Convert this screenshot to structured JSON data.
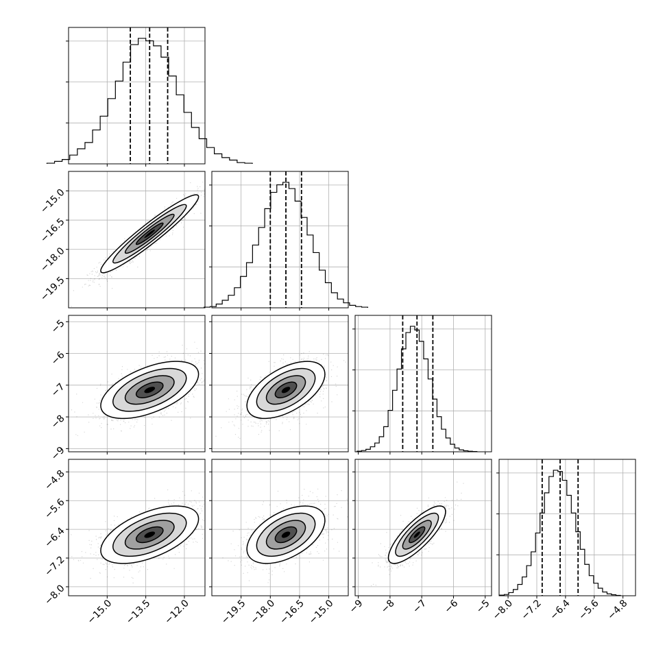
{
  "chart_data": {
    "type": "corner",
    "grid": true,
    "parameters": [
      {
        "range": [
          -16.5,
          -11.2
        ],
        "mean": -13.35,
        "sd": 0.95,
        "quantiles": [
          -14.1,
          -13.35,
          -12.65
        ],
        "ticks": [
          -15.0,
          -13.5,
          -12.0
        ],
        "tick_labels": [
          "−15.0",
          "−13.5",
          "−12.0"
        ]
      },
      {
        "range": [
          -21.0,
          -14.0
        ],
        "mean": -17.2,
        "sd": 1.0,
        "quantiles": [
          -18.0,
          -17.2,
          -16.4
        ],
        "ticks": [
          -19.5,
          -18.0,
          -16.5,
          -15.0
        ],
        "tick_labels": [
          "−19.5",
          "−18.0",
          "−16.5",
          "−15.0"
        ]
      },
      {
        "range": [
          -9.1,
          -4.8
        ],
        "mean": -7.15,
        "sd": 0.45,
        "quantiles": [
          -7.6,
          -7.15,
          -6.65
        ],
        "ticks": [
          -9,
          -8,
          -7,
          -6,
          -5
        ],
        "tick_labels": [
          "−9",
          "−8",
          "−7",
          "−6",
          "−5"
        ]
      },
      {
        "range": [
          -8.25,
          -4.45
        ],
        "mean": -6.55,
        "sd": 0.4,
        "quantiles": [
          -7.05,
          -6.55,
          -6.05
        ],
        "ticks": [
          -8.0,
          -7.2,
          -6.4,
          -5.6,
          -4.8
        ],
        "tick_labels": [
          "−8.0",
          "−7.2",
          "−6.4",
          "−5.6",
          "−4.8"
        ]
      }
    ],
    "correlations": {
      "1-0": 0.95,
      "2-0": 0.55,
      "2-1": 0.55,
      "3-0": 0.55,
      "3-1": 0.5,
      "3-2": 0.8
    },
    "histogram_peak_fractions": [
      [
        0.005,
        0.02,
        0.035,
        0.07,
        0.12,
        0.17,
        0.27,
        0.38,
        0.52,
        0.66,
        0.81,
        0.95,
        1.0,
        0.98,
        0.94,
        0.85,
        0.7,
        0.55,
        0.41,
        0.29,
        0.2,
        0.13,
        0.08,
        0.05,
        0.03,
        0.01,
        0.005
      ],
      [
        0.005,
        0.01,
        0.03,
        0.06,
        0.1,
        0.16,
        0.25,
        0.36,
        0.5,
        0.64,
        0.79,
        0.92,
        0.98,
        1.0,
        0.95,
        0.85,
        0.72,
        0.58,
        0.44,
        0.3,
        0.2,
        0.12,
        0.07,
        0.04,
        0.02,
        0.01,
        0.005
      ],
      [
        0.005,
        0.01,
        0.02,
        0.04,
        0.07,
        0.12,
        0.2,
        0.33,
        0.49,
        0.66,
        0.82,
        0.95,
        1.0,
        0.97,
        0.88,
        0.74,
        0.58,
        0.42,
        0.28,
        0.18,
        0.11,
        0.06,
        0.03,
        0.015,
        0.008,
        0.004,
        0.002
      ],
      [
        0.005,
        0.01,
        0.025,
        0.05,
        0.09,
        0.15,
        0.24,
        0.35,
        0.5,
        0.66,
        0.82,
        0.95,
        1.0,
        0.99,
        0.92,
        0.8,
        0.66,
        0.51,
        0.37,
        0.25,
        0.16,
        0.1,
        0.06,
        0.03,
        0.015,
        0.008,
        0.003
      ]
    ]
  }
}
